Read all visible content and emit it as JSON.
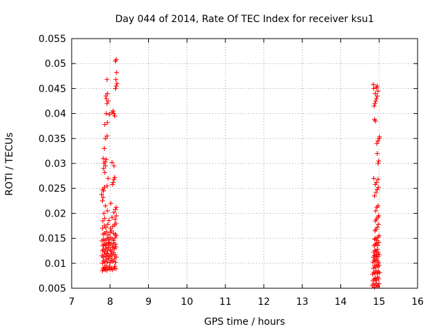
{
  "chart_data": {
    "type": "scatter",
    "title": "Day 044 of 2014, Rate Of TEC Index for receiver ksu1",
    "xlabel": "GPS time / hours",
    "ylabel": "ROTI / TECUs",
    "xlim": [
      7,
      16
    ],
    "ylim": [
      0.005,
      0.055
    ],
    "xticks": [
      "7",
      "8",
      "9",
      "10",
      "11",
      "12",
      "13",
      "14",
      "15",
      "16"
    ],
    "yticks": [
      "0.005",
      "0.01",
      "0.015",
      "0.02",
      "0.025",
      "0.03",
      "0.035",
      "0.04",
      "0.045",
      "0.05",
      "0.055"
    ],
    "grid": true,
    "marker": "+",
    "marker_color": "#ff0000",
    "series": [
      {
        "name": "ROTI",
        "points": [
          [
            7.8,
            0.0085
          ],
          [
            7.82,
            0.009
          ],
          [
            7.84,
            0.0088
          ],
          [
            7.86,
            0.0092
          ],
          [
            7.88,
            0.0087
          ],
          [
            7.9,
            0.0095
          ],
          [
            7.92,
            0.0086
          ],
          [
            7.95,
            0.009
          ],
          [
            7.98,
            0.0093
          ],
          [
            8.0,
            0.0088
          ],
          [
            8.03,
            0.0091
          ],
          [
            8.06,
            0.0087
          ],
          [
            8.1,
            0.009
          ],
          [
            8.12,
            0.0094
          ],
          [
            8.15,
            0.0089
          ],
          [
            7.8,
            0.01
          ],
          [
            7.83,
            0.0105
          ],
          [
            7.86,
            0.0102
          ],
          [
            7.9,
            0.0108
          ],
          [
            7.93,
            0.0103
          ],
          [
            7.96,
            0.011
          ],
          [
            8.0,
            0.0101
          ],
          [
            8.03,
            0.0106
          ],
          [
            8.07,
            0.0104
          ],
          [
            8.11,
            0.0109
          ],
          [
            8.14,
            0.0102
          ],
          [
            7.79,
            0.0115
          ],
          [
            7.82,
            0.0112
          ],
          [
            7.85,
            0.0118
          ],
          [
            7.89,
            0.0114
          ],
          [
            7.92,
            0.012
          ],
          [
            7.95,
            0.0116
          ],
          [
            7.99,
            0.0113
          ],
          [
            8.02,
            0.0119
          ],
          [
            8.05,
            0.0115
          ],
          [
            8.09,
            0.0121
          ],
          [
            8.13,
            0.0117
          ],
          [
            8.16,
            0.0112
          ],
          [
            7.8,
            0.0125
          ],
          [
            7.83,
            0.0128
          ],
          [
            7.87,
            0.0123
          ],
          [
            7.9,
            0.013
          ],
          [
            7.94,
            0.0126
          ],
          [
            7.97,
            0.0132
          ],
          [
            8.01,
            0.0127
          ],
          [
            8.04,
            0.0124
          ],
          [
            8.08,
            0.0131
          ],
          [
            8.12,
            0.0129
          ],
          [
            8.15,
            0.0133
          ],
          [
            7.81,
            0.0135
          ],
          [
            7.84,
            0.0138
          ],
          [
            7.88,
            0.0136
          ],
          [
            7.91,
            0.014
          ],
          [
            7.95,
            0.0137
          ],
          [
            7.98,
            0.0142
          ],
          [
            8.02,
            0.0139
          ],
          [
            8.06,
            0.0135
          ],
          [
            8.1,
            0.0141
          ],
          [
            8.14,
            0.0138
          ],
          [
            7.79,
            0.0145
          ],
          [
            7.83,
            0.0148
          ],
          [
            7.87,
            0.0146
          ],
          [
            7.92,
            0.015
          ],
          [
            7.96,
            0.0147
          ],
          [
            8.0,
            0.0152
          ],
          [
            8.05,
            0.0149
          ],
          [
            8.09,
            0.0146
          ],
          [
            8.13,
            0.0151
          ],
          [
            8.16,
            0.0155
          ],
          [
            7.82,
            0.0158
          ],
          [
            7.86,
            0.016
          ],
          [
            7.9,
            0.0163
          ],
          [
            7.95,
            0.0157
          ],
          [
            8.0,
            0.0162
          ],
          [
            8.04,
            0.0165
          ],
          [
            8.09,
            0.016
          ],
          [
            8.14,
            0.0158
          ],
          [
            7.8,
            0.017
          ],
          [
            7.85,
            0.0175
          ],
          [
            7.89,
            0.0172
          ],
          [
            7.94,
            0.0178
          ],
          [
            8.01,
            0.017
          ],
          [
            8.07,
            0.0174
          ],
          [
            8.12,
            0.0177
          ],
          [
            8.15,
            0.018
          ],
          [
            7.81,
            0.0185
          ],
          [
            7.86,
            0.019
          ],
          [
            7.97,
            0.0186
          ],
          [
            8.05,
            0.0192
          ],
          [
            8.13,
            0.0188
          ],
          [
            8.16,
            0.0195
          ],
          [
            7.84,
            0.02
          ],
          [
            7.93,
            0.0205
          ],
          [
            8.1,
            0.0202
          ],
          [
            8.14,
            0.0208
          ],
          [
            8.16,
            0.0212
          ],
          [
            8.02,
            0.022
          ],
          [
            7.88,
            0.0215
          ],
          [
            7.8,
            0.0225
          ],
          [
            7.82,
            0.0232
          ],
          [
            7.78,
            0.0238
          ],
          [
            7.83,
            0.0245
          ],
          [
            7.81,
            0.0248
          ],
          [
            7.85,
            0.0252
          ],
          [
            7.92,
            0.0255
          ],
          [
            8.06,
            0.0258
          ],
          [
            8.08,
            0.0262
          ],
          [
            8.1,
            0.0268
          ],
          [
            8.12,
            0.0272
          ],
          [
            7.95,
            0.027
          ],
          [
            7.86,
            0.0282
          ],
          [
            7.83,
            0.029
          ],
          [
            7.88,
            0.0295
          ],
          [
            7.84,
            0.03
          ],
          [
            7.87,
            0.0303
          ],
          [
            7.9,
            0.0308
          ],
          [
            7.82,
            0.031
          ],
          [
            8.05,
            0.0302
          ],
          [
            8.1,
            0.0295
          ],
          [
            7.85,
            0.033
          ],
          [
            7.88,
            0.035
          ],
          [
            7.92,
            0.0355
          ],
          [
            7.86,
            0.0378
          ],
          [
            7.93,
            0.0382
          ],
          [
            7.9,
            0.04
          ],
          [
            7.98,
            0.0398
          ],
          [
            8.05,
            0.0402
          ],
          [
            8.08,
            0.0405
          ],
          [
            8.1,
            0.04
          ],
          [
            8.12,
            0.0395
          ],
          [
            7.92,
            0.042
          ],
          [
            7.95,
            0.0425
          ],
          [
            7.9,
            0.043
          ],
          [
            7.93,
            0.044
          ],
          [
            7.89,
            0.0435
          ],
          [
            7.92,
            0.0468
          ],
          [
            8.14,
            0.045
          ],
          [
            8.16,
            0.0455
          ],
          [
            8.18,
            0.046
          ],
          [
            8.15,
            0.0468
          ],
          [
            8.17,
            0.0482
          ],
          [
            8.14,
            0.0505
          ],
          [
            8.16,
            0.0508
          ],
          [
            14.82,
            0.0055
          ],
          [
            14.85,
            0.0058
          ],
          [
            14.88,
            0.0052
          ],
          [
            14.91,
            0.006
          ],
          [
            14.94,
            0.0056
          ],
          [
            14.97,
            0.0054
          ],
          [
            15.0,
            0.0059
          ],
          [
            14.84,
            0.0065
          ],
          [
            14.87,
            0.0068
          ],
          [
            14.9,
            0.007
          ],
          [
            14.93,
            0.0066
          ],
          [
            14.96,
            0.0072
          ],
          [
            14.99,
            0.0069
          ],
          [
            14.83,
            0.0078
          ],
          [
            14.86,
            0.0082
          ],
          [
            14.89,
            0.008
          ],
          [
            14.92,
            0.0085
          ],
          [
            14.95,
            0.0079
          ],
          [
            14.98,
            0.0083
          ],
          [
            15.01,
            0.0081
          ],
          [
            14.85,
            0.009
          ],
          [
            14.88,
            0.0095
          ],
          [
            14.91,
            0.0092
          ],
          [
            14.94,
            0.0098
          ],
          [
            14.97,
            0.0093
          ],
          [
            15.0,
            0.0096
          ],
          [
            14.84,
            0.0102
          ],
          [
            14.87,
            0.0106
          ],
          [
            14.9,
            0.0104
          ],
          [
            14.93,
            0.0109
          ],
          [
            14.96,
            0.0105
          ],
          [
            14.99,
            0.0101
          ],
          [
            14.85,
            0.0112
          ],
          [
            14.88,
            0.0116
          ],
          [
            14.91,
            0.0114
          ],
          [
            14.94,
            0.0118
          ],
          [
            14.97,
            0.0113
          ],
          [
            15.0,
            0.0117
          ],
          [
            14.86,
            0.0122
          ],
          [
            14.89,
            0.0126
          ],
          [
            14.92,
            0.0124
          ],
          [
            14.95,
            0.0128
          ],
          [
            14.98,
            0.0121
          ],
          [
            14.87,
            0.0135
          ],
          [
            14.9,
            0.0138
          ],
          [
            14.93,
            0.014
          ],
          [
            14.96,
            0.0136
          ],
          [
            14.99,
            0.0142
          ],
          [
            14.88,
            0.0148
          ],
          [
            14.91,
            0.015
          ],
          [
            14.94,
            0.0146
          ],
          [
            14.97,
            0.0152
          ],
          [
            15.0,
            0.0155
          ],
          [
            14.89,
            0.0165
          ],
          [
            14.92,
            0.0168
          ],
          [
            14.95,
            0.0172
          ],
          [
            14.98,
            0.0178
          ],
          [
            14.9,
            0.0185
          ],
          [
            14.93,
            0.0188
          ],
          [
            14.96,
            0.0192
          ],
          [
            14.99,
            0.0195
          ],
          [
            14.91,
            0.0205
          ],
          [
            14.94,
            0.0212
          ],
          [
            14.97,
            0.0215
          ],
          [
            14.88,
            0.0235
          ],
          [
            14.92,
            0.0242
          ],
          [
            14.95,
            0.0248
          ],
          [
            14.98,
            0.0252
          ],
          [
            14.9,
            0.0258
          ],
          [
            14.93,
            0.0262
          ],
          [
            14.97,
            0.0268
          ],
          [
            14.86,
            0.027
          ],
          [
            14.97,
            0.03
          ],
          [
            14.99,
            0.0305
          ],
          [
            14.95,
            0.032
          ],
          [
            14.94,
            0.034
          ],
          [
            14.97,
            0.0345
          ],
          [
            15.0,
            0.035
          ],
          [
            15.01,
            0.0353
          ],
          [
            14.9,
            0.0385
          ],
          [
            14.88,
            0.0388
          ],
          [
            14.87,
            0.0415
          ],
          [
            14.89,
            0.042
          ],
          [
            14.91,
            0.0425
          ],
          [
            14.93,
            0.043
          ],
          [
            14.95,
            0.0435
          ],
          [
            14.9,
            0.044
          ],
          [
            14.97,
            0.0445
          ],
          [
            14.86,
            0.045
          ],
          [
            14.93,
            0.0452
          ],
          [
            14.95,
            0.0455
          ],
          [
            14.85,
            0.0458
          ]
        ]
      }
    ]
  }
}
